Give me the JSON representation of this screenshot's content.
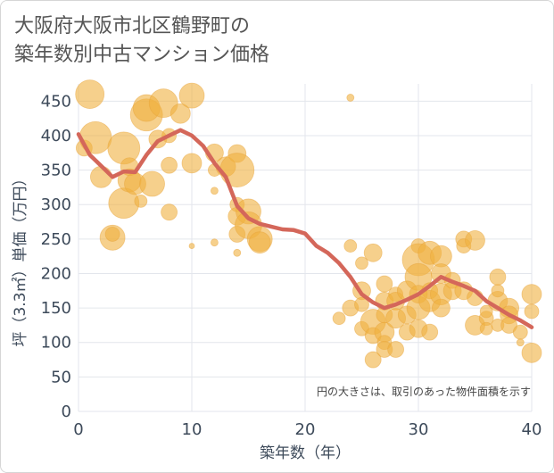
{
  "chart_data": {
    "type": "scatter",
    "title_lines": [
      "大阪府大阪市北区鶴野町の",
      "築年数別中古マンション価格"
    ],
    "xlabel": "築年数（年）",
    "ylabel": "坪（3.3㎡）単価（万円）",
    "xlim": [
      0,
      40
    ],
    "ylim": [
      0,
      475
    ],
    "x_ticks": [
      0,
      10,
      20,
      30,
      40
    ],
    "y_ticks": [
      0,
      50,
      100,
      150,
      200,
      250,
      300,
      350,
      400,
      450
    ],
    "grid": true,
    "annotation": "円の大きさは、取引のあった物件面積を示す",
    "colors": {
      "bubble": "#f0b040",
      "line": "#d4675a",
      "grid": "#e3e6ec",
      "axis_text": "#3d4a5a"
    },
    "series": [
      {
        "type": "bubble",
        "points": [
          [
            1,
            460,
            16
          ],
          [
            0.5,
            382,
            9
          ],
          [
            1.5,
            397,
            18
          ],
          [
            2,
            340,
            12
          ],
          [
            3,
            252,
            14
          ],
          [
            3,
            257,
            8
          ],
          [
            4,
            382,
            18
          ],
          [
            4,
            302,
            17
          ],
          [
            4.5,
            335,
            13
          ],
          [
            4.5,
            355,
            10
          ],
          [
            5,
            330,
            12
          ],
          [
            5.5,
            305,
            7
          ],
          [
            6,
            430,
            18
          ],
          [
            6,
            440,
            15
          ],
          [
            6.5,
            330,
            14
          ],
          [
            7,
            395,
            10
          ],
          [
            7.5,
            447,
            16
          ],
          [
            8,
            400,
            8
          ],
          [
            8,
            357,
            9
          ],
          [
            8,
            289,
            9
          ],
          [
            9,
            432,
            11
          ],
          [
            10,
            458,
            14
          ],
          [
            10,
            360,
            11
          ],
          [
            10,
            240,
            3
          ],
          [
            12,
            375,
            10
          ],
          [
            12,
            350,
            7
          ],
          [
            12,
            320,
            4
          ],
          [
            12,
            245,
            4
          ],
          [
            13,
            355,
            11
          ],
          [
            14,
            374,
            10
          ],
          [
            14,
            350,
            19
          ],
          [
            14,
            300,
            8
          ],
          [
            14,
            283,
            10
          ],
          [
            14,
            257,
            9
          ],
          [
            14,
            230,
            4
          ],
          [
            15,
            290,
            14
          ],
          [
            15,
            270,
            15
          ],
          [
            16,
            250,
            14
          ],
          [
            16,
            245,
            12
          ],
          [
            24,
            455,
            4
          ],
          [
            24,
            240,
            7
          ],
          [
            24,
            150,
            9
          ],
          [
            23,
            135,
            7
          ],
          [
            25,
            215,
            7
          ],
          [
            25,
            175,
            10
          ],
          [
            25,
            155,
            8
          ],
          [
            25,
            120,
            8
          ],
          [
            26,
            230,
            10
          ],
          [
            26,
            130,
            14
          ],
          [
            26,
            110,
            9
          ],
          [
            26,
            75,
            9
          ],
          [
            27,
            185,
            9
          ],
          [
            27,
            160,
            10
          ],
          [
            27,
            140,
            9
          ],
          [
            27,
            115,
            11
          ],
          [
            27,
            100,
            8
          ],
          [
            27,
            90,
            9
          ],
          [
            28,
            170,
            8
          ],
          [
            28,
            160,
            10
          ],
          [
            28,
            135,
            11
          ],
          [
            28,
            90,
            9
          ],
          [
            29,
            175,
            11
          ],
          [
            29,
            140,
            10
          ],
          [
            29,
            115,
            9
          ],
          [
            30,
            240,
            8
          ],
          [
            30,
            220,
            18
          ],
          [
            30,
            195,
            15
          ],
          [
            30,
            170,
            10
          ],
          [
            30,
            150,
            13
          ],
          [
            30,
            120,
            10
          ],
          [
            31,
            230,
            13
          ],
          [
            31,
            175,
            9
          ],
          [
            31,
            160,
            12
          ],
          [
            31,
            115,
            9
          ],
          [
            32,
            225,
            12
          ],
          [
            32,
            200,
            11
          ],
          [
            32,
            170,
            12
          ],
          [
            32,
            150,
            10
          ],
          [
            33,
            190,
            9
          ],
          [
            33,
            175,
            10
          ],
          [
            34,
            250,
            9
          ],
          [
            34,
            240,
            8
          ],
          [
            34,
            175,
            10
          ],
          [
            35,
            248,
            11
          ],
          [
            35,
            165,
            9
          ],
          [
            35,
            125,
            11
          ],
          [
            36,
            135,
            8
          ],
          [
            36,
            120,
            7
          ],
          [
            36,
            145,
            7
          ],
          [
            37,
            160,
            11
          ],
          [
            37,
            175,
            7
          ],
          [
            37,
            195,
            9
          ],
          [
            37,
            125,
            7
          ],
          [
            38,
            150,
            11
          ],
          [
            38,
            140,
            10
          ],
          [
            38,
            125,
            9
          ],
          [
            39,
            115,
            8
          ],
          [
            39,
            100,
            4
          ],
          [
            40,
            170,
            11
          ],
          [
            40,
            145,
            8
          ],
          [
            40,
            85,
            11
          ]
        ]
      },
      {
        "type": "line",
        "x": [
          0,
          1,
          2,
          3,
          4,
          5,
          6,
          7,
          8,
          9,
          10,
          11,
          12,
          13,
          14,
          15,
          16,
          17,
          18,
          19,
          20,
          21,
          22,
          23,
          24,
          25,
          26,
          27,
          28,
          29,
          30,
          31,
          32,
          33,
          34,
          35,
          36,
          37,
          38,
          39,
          40
        ],
        "y": [
          402,
          372,
          356,
          340,
          348,
          347,
          372,
          392,
          400,
          408,
          400,
          385,
          360,
          340,
          298,
          280,
          272,
          268,
          264,
          263,
          258,
          240,
          230,
          215,
          195,
          170,
          158,
          150,
          155,
          162,
          170,
          182,
          195,
          188,
          182,
          175,
          160,
          150,
          140,
          132,
          122
        ]
      }
    ]
  }
}
